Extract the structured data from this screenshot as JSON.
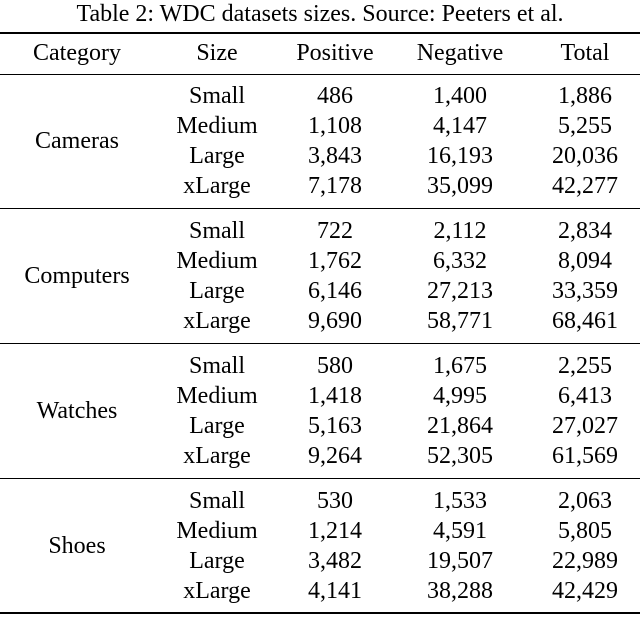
{
  "caption": "Table 2: WDC datasets sizes. Source: Peeters et al.",
  "headers": {
    "category": "Category",
    "size": "Size",
    "positive": "Positive",
    "negative": "Negative",
    "total": "Total"
  },
  "groups": [
    {
      "category": "Cameras",
      "rows": [
        {
          "size": "Small",
          "positive": "486",
          "negative": "1,400",
          "total": "1,886"
        },
        {
          "size": "Medium",
          "positive": "1,108",
          "negative": "4,147",
          "total": "5,255"
        },
        {
          "size": "Large",
          "positive": "3,843",
          "negative": "16,193",
          "total": "20,036"
        },
        {
          "size": "xLarge",
          "positive": "7,178",
          "negative": "35,099",
          "total": "42,277"
        }
      ]
    },
    {
      "category": "Computers",
      "rows": [
        {
          "size": "Small",
          "positive": "722",
          "negative": "2,112",
          "total": "2,834"
        },
        {
          "size": "Medium",
          "positive": "1,762",
          "negative": "6,332",
          "total": "8,094"
        },
        {
          "size": "Large",
          "positive": "6,146",
          "negative": "27,213",
          "total": "33,359"
        },
        {
          "size": "xLarge",
          "positive": "9,690",
          "negative": "58,771",
          "total": "68,461"
        }
      ]
    },
    {
      "category": "Watches",
      "rows": [
        {
          "size": "Small",
          "positive": "580",
          "negative": "1,675",
          "total": "2,255"
        },
        {
          "size": "Medium",
          "positive": "1,418",
          "negative": "4,995",
          "total": "6,413"
        },
        {
          "size": "Large",
          "positive": "5,163",
          "negative": "21,864",
          "total": "27,027"
        },
        {
          "size": "xLarge",
          "positive": "9,264",
          "negative": "52,305",
          "total": "61,569"
        }
      ]
    },
    {
      "category": "Shoes",
      "rows": [
        {
          "size": "Small",
          "positive": "530",
          "negative": "1,533",
          "total": "2,063"
        },
        {
          "size": "Medium",
          "positive": "1,214",
          "negative": "4,591",
          "total": "5,805"
        },
        {
          "size": "Large",
          "positive": "3,482",
          "negative": "19,507",
          "total": "22,989"
        },
        {
          "size": "xLarge",
          "positive": "4,141",
          "negative": "38,288",
          "total": "42,429"
        }
      ]
    }
  ]
}
